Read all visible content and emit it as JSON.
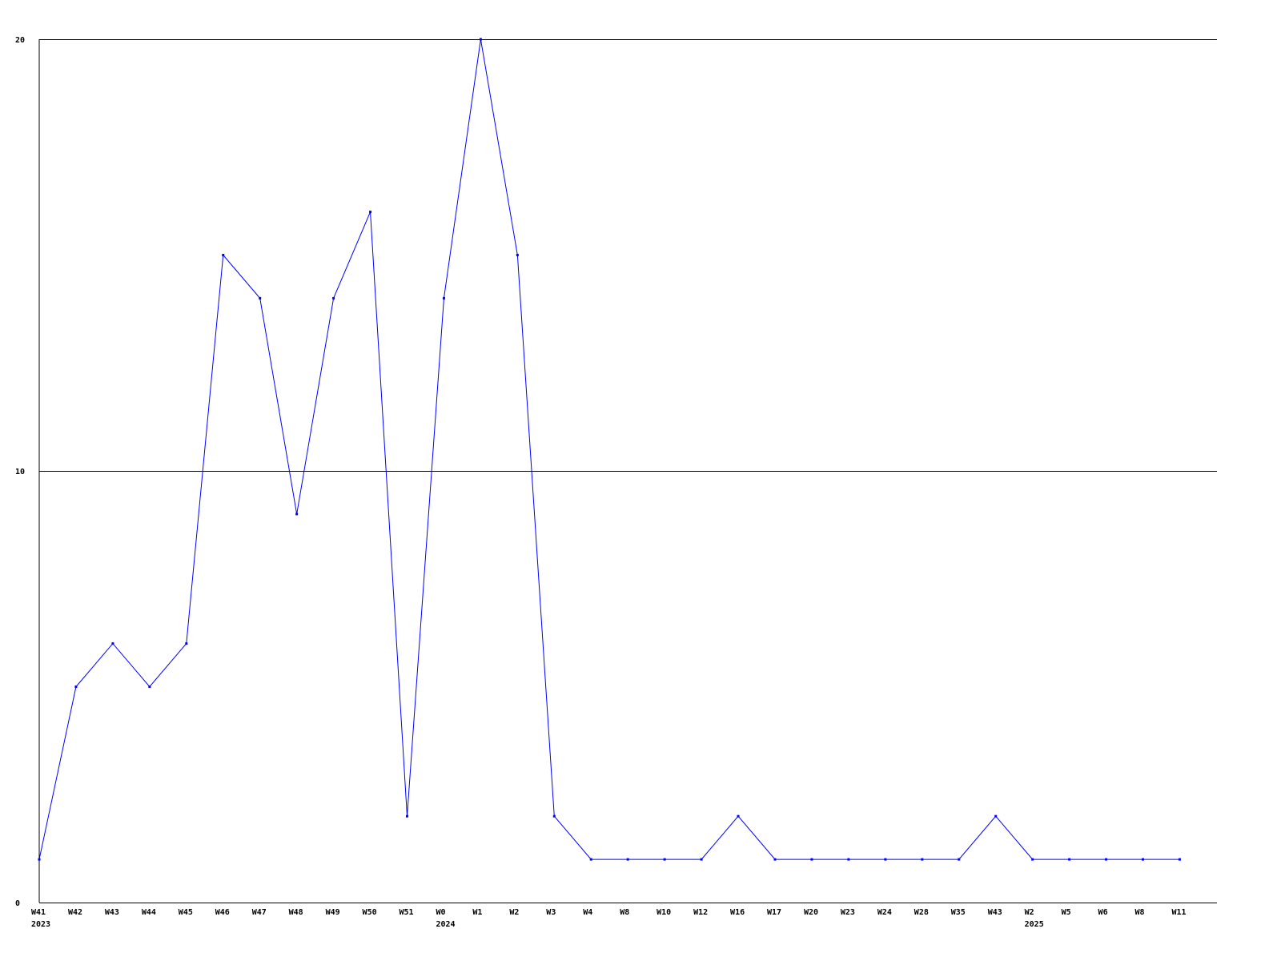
{
  "chart_data": {
    "type": "line",
    "title": "",
    "xlabel": "",
    "ylabel": "",
    "ylim": [
      0,
      20
    ],
    "yticks": [
      "0",
      "10",
      "20"
    ],
    "grid": "horizontal lines at y ticks",
    "categories": [
      "W41",
      "W42",
      "W43",
      "W44",
      "W45",
      "W46",
      "W47",
      "W48",
      "W49",
      "W50",
      "W51",
      "W0",
      "W1",
      "W2",
      "W3",
      "W4",
      "W8",
      "W10",
      "W12",
      "W16",
      "W17",
      "W20",
      "W23",
      "W24",
      "W28",
      "W35",
      "W43",
      "W2",
      "W5",
      "W6",
      "W8",
      "W11"
    ],
    "year_labels": [
      {
        "category_index": 0,
        "label": "2023"
      },
      {
        "category_index": 11,
        "label": "2024"
      },
      {
        "category_index": 27,
        "label": "2025"
      }
    ],
    "series": [
      {
        "color": "#0000ff",
        "values": [
          1,
          5,
          6,
          5,
          6,
          15,
          14,
          9,
          14,
          16,
          2,
          14,
          20,
          15,
          2,
          1,
          1,
          1,
          1,
          2,
          1,
          1,
          1,
          1,
          1,
          1,
          2,
          1,
          1,
          1,
          1,
          1
        ]
      }
    ]
  }
}
